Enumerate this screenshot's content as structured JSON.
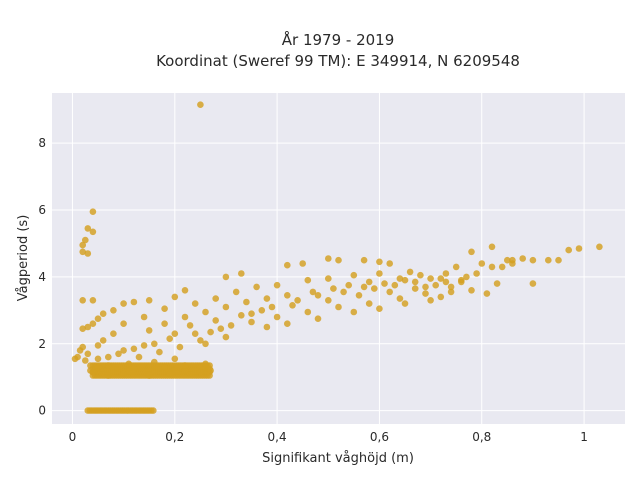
{
  "chart_data": {
    "type": "scatter",
    "title_lines": [
      "År 1979 - 2019",
      "Koordinat (Sweref 99 TM): E 349914, N 6209548"
    ],
    "xlabel": "Signifikant våghöjd (m)",
    "ylabel": "Vågperiod (s)",
    "xlim": [
      -0.04,
      1.08
    ],
    "ylim": [
      -0.4,
      9.5
    ],
    "x_ticks": [
      0,
      0.2,
      0.4,
      0.6,
      0.8,
      1.0
    ],
    "x_tick_labels": [
      "0",
      "0,2",
      "0,4",
      "0,6",
      "0,8",
      "1"
    ],
    "y_ticks": [
      0,
      2,
      4,
      6,
      8
    ],
    "y_tick_labels": [
      "0",
      "2",
      "4",
      "6",
      "8"
    ],
    "grid": true,
    "colors": {
      "point": "#d4a020",
      "plot_background": "#e9e9f1",
      "grid": "#ffffff"
    },
    "series": [
      {
        "points": [
          [
            0.25,
            9.15
          ],
          [
            0.04,
            5.95
          ],
          [
            0.03,
            5.45
          ],
          [
            0.04,
            5.35
          ],
          [
            0.025,
            5.1
          ],
          [
            0.02,
            4.95
          ],
          [
            0.02,
            4.75
          ],
          [
            0.03,
            4.7
          ],
          [
            0.02,
            3.3
          ],
          [
            0.04,
            3.3
          ],
          [
            1.03,
            4.9
          ],
          [
            0.99,
            4.85
          ],
          [
            0.97,
            4.8
          ],
          [
            0.95,
            4.5
          ],
          [
            0.93,
            4.5
          ],
          [
            0.9,
            4.5
          ],
          [
            0.88,
            4.55
          ],
          [
            0.86,
            4.4
          ],
          [
            0.85,
            4.5
          ],
          [
            0.82,
            4.9
          ],
          [
            0.8,
            4.4
          ],
          [
            0.82,
            4.3
          ],
          [
            0.86,
            4.5
          ],
          [
            0.84,
            4.3
          ],
          [
            0.78,
            4.75
          ],
          [
            0.75,
            4.3
          ],
          [
            0.79,
            4.1
          ],
          [
            0.73,
            4.1
          ],
          [
            0.76,
            3.9
          ],
          [
            0.74,
            3.7
          ],
          [
            0.9,
            3.8
          ],
          [
            0.83,
            3.8
          ],
          [
            0.81,
            3.5
          ],
          [
            0.62,
            4.4
          ],
          [
            0.6,
            4.45
          ],
          [
            0.57,
            4.5
          ],
          [
            0.5,
            4.55
          ],
          [
            0.42,
            4.35
          ],
          [
            0.33,
            4.1
          ],
          [
            0.3,
            4.0
          ],
          [
            0.22,
            3.6
          ],
          [
            0.15,
            3.3
          ],
          [
            0.2,
            3.4
          ],
          [
            0.45,
            4.4
          ],
          [
            0.52,
            4.5
          ],
          [
            0.08,
            3.0
          ],
          [
            0.1,
            3.2
          ],
          [
            0.12,
            3.25
          ],
          [
            0.06,
            2.9
          ],
          [
            0.05,
            2.75
          ],
          [
            0.04,
            2.6
          ],
          [
            0.03,
            2.5
          ],
          [
            0.02,
            2.45
          ],
          [
            0.01,
            1.6
          ],
          [
            0.005,
            1.55
          ],
          [
            0.015,
            1.8
          ],
          [
            0.02,
            1.9
          ],
          [
            0.03,
            1.7
          ],
          [
            0.025,
            1.5
          ],
          [
            0.035,
            1.35
          ],
          [
            0.035,
            1.2
          ],
          [
            0.05,
            1.3
          ],
          [
            0.55,
            2.95
          ],
          [
            0.6,
            3.05
          ],
          [
            0.65,
            3.2
          ],
          [
            0.7,
            3.3
          ],
          [
            0.72,
            3.4
          ],
          [
            0.48,
            2.75
          ],
          [
            0.42,
            2.6
          ],
          [
            0.38,
            2.5
          ],
          [
            0.3,
            2.2
          ],
          [
            0.26,
            2.0
          ],
          [
            0.27,
            1.2
          ],
          [
            0.25,
            1.15
          ],
          [
            0.22,
            1.2
          ],
          [
            0.04,
            1.15
          ],
          [
            0.07,
            1.05
          ],
          [
            0.1,
            1.1
          ],
          [
            0.15,
            1.05
          ],
          [
            0.19,
            1.1
          ],
          [
            0.68,
            4.05
          ],
          [
            0.7,
            3.95
          ],
          [
            0.66,
            4.15
          ],
          [
            0.64,
            3.95
          ],
          [
            0.6,
            4.1
          ],
          [
            0.55,
            4.05
          ],
          [
            0.58,
            3.85
          ],
          [
            0.5,
            3.95
          ],
          [
            0.46,
            3.9
          ],
          [
            0.4,
            3.75
          ],
          [
            0.36,
            3.7
          ],
          [
            0.32,
            3.55
          ],
          [
            0.28,
            3.35
          ],
          [
            0.24,
            3.2
          ],
          [
            0.18,
            3.05
          ],
          [
            0.14,
            2.8
          ],
          [
            0.1,
            2.6
          ],
          [
            0.08,
            2.3
          ],
          [
            0.06,
            2.1
          ],
          [
            0.05,
            1.95
          ],
          [
            0.09,
            1.7
          ],
          [
            0.12,
            1.85
          ],
          [
            0.16,
            2.0
          ],
          [
            0.2,
            2.3
          ],
          [
            0.23,
            2.55
          ],
          [
            0.28,
            2.7
          ],
          [
            0.33,
            2.85
          ],
          [
            0.37,
            3.0
          ],
          [
            0.43,
            3.15
          ],
          [
            0.5,
            3.3
          ],
          [
            0.56,
            3.45
          ],
          [
            0.62,
            3.55
          ],
          [
            0.67,
            3.65
          ],
          [
            0.71,
            3.75
          ],
          [
            0.76,
            3.85
          ],
          [
            0.78,
            3.6
          ],
          [
            0.74,
            3.55
          ],
          [
            0.69,
            3.5
          ],
          [
            0.64,
            3.35
          ],
          [
            0.58,
            3.2
          ],
          [
            0.52,
            3.1
          ],
          [
            0.46,
            2.95
          ],
          [
            0.4,
            2.8
          ],
          [
            0.35,
            2.65
          ],
          [
            0.29,
            2.45
          ],
          [
            0.24,
            2.3
          ],
          [
            0.19,
            2.15
          ],
          [
            0.14,
            1.95
          ],
          [
            0.1,
            1.8
          ],
          [
            0.07,
            1.6
          ],
          [
            0.15,
            2.4
          ],
          [
            0.18,
            2.6
          ],
          [
            0.22,
            2.8
          ],
          [
            0.26,
            2.95
          ],
          [
            0.3,
            3.1
          ],
          [
            0.34,
            3.25
          ],
          [
            0.38,
            3.35
          ],
          [
            0.42,
            3.45
          ],
          [
            0.47,
            3.55
          ],
          [
            0.51,
            3.65
          ],
          [
            0.54,
            3.75
          ],
          [
            0.59,
            3.65
          ],
          [
            0.63,
            3.75
          ],
          [
            0.67,
            3.85
          ],
          [
            0.72,
            3.95
          ],
          [
            0.77,
            4.0
          ],
          [
            0.12,
            1.25
          ],
          [
            0.18,
            1.3
          ],
          [
            0.22,
            1.35
          ],
          [
            0.26,
            1.4
          ],
          [
            0.2,
            1.55
          ],
          [
            0.16,
            1.45
          ],
          [
            0.11,
            1.4
          ],
          [
            0.07,
            1.35
          ],
          [
            0.05,
            1.55
          ],
          [
            0.13,
            1.6
          ],
          [
            0.17,
            1.75
          ],
          [
            0.21,
            1.9
          ],
          [
            0.25,
            2.1
          ],
          [
            0.27,
            2.35
          ],
          [
            0.31,
            2.55
          ],
          [
            0.35,
            2.9
          ],
          [
            0.39,
            3.1
          ],
          [
            0.44,
            3.3
          ],
          [
            0.48,
            3.45
          ],
          [
            0.53,
            3.55
          ],
          [
            0.57,
            3.7
          ],
          [
            0.61,
            3.8
          ],
          [
            0.65,
            3.9
          ],
          [
            0.69,
            3.7
          ],
          [
            0.73,
            3.85
          ]
        ],
        "bands": [
          {
            "x": [
              0.03,
              0.16
            ],
            "y": [
              0.0,
              0.0
            ]
          },
          {
            "x": [
              0.04,
              0.27
            ],
            "y": [
              1.05,
              1.4
            ]
          }
        ]
      }
    ]
  }
}
